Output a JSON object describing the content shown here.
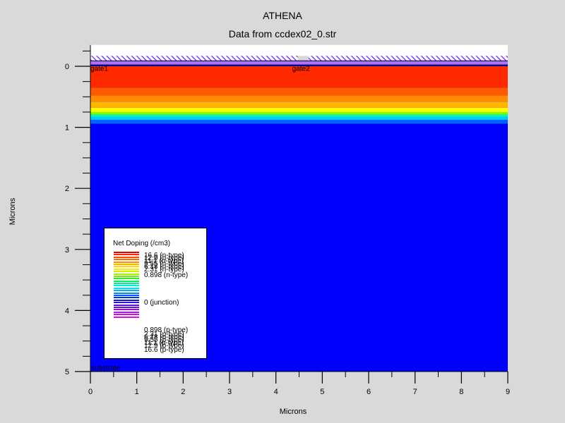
{
  "chart_data": {
    "type": "heatmap",
    "title": "ATHENA",
    "subtitle": "Data from ccdex02_0.str",
    "xlabel": "Microns",
    "ylabel": "Microns",
    "xlim": [
      0,
      9
    ],
    "ylim": [
      5,
      -0.35
    ],
    "x_ticks": [
      "0",
      "1",
      "2",
      "3",
      "4",
      "5",
      "6",
      "7",
      "8",
      "9"
    ],
    "y_ticks": [
      "0",
      "1",
      "2",
      "3",
      "4",
      "5"
    ],
    "background_color": "#0000ff",
    "layers": [
      {
        "y_from": 0.0,
        "y_to": 0.35,
        "level": "16.6 (n-type)",
        "color": "#ff2a00"
      },
      {
        "y_from": 0.35,
        "y_to": 0.48,
        "level": "12.9 (n-type)",
        "color": "#ff5a00"
      },
      {
        "y_from": 0.48,
        "y_to": 0.58,
        "level": "11.1 (n-type)",
        "color": "#ff8c00"
      },
      {
        "y_from": 0.58,
        "y_to": 0.68,
        "level": "9.55 (n-type)",
        "color": "#ffb400"
      },
      {
        "y_from": 0.68,
        "y_to": 0.75,
        "level": "6.18 (n-type)",
        "color": "#ffff00"
      },
      {
        "y_from": 0.75,
        "y_to": 0.79,
        "level": "2.31 (n-type)",
        "color": "#80ff00"
      },
      {
        "y_from": 0.79,
        "y_to": 0.83,
        "level": "0 (junction)",
        "color": "#00ffb0"
      },
      {
        "y_from": 0.83,
        "y_to": 0.88,
        "level": "0.898 (p-type)",
        "color": "#00c8ff"
      },
      {
        "y_from": 0.88,
        "y_to": 0.94,
        "level": "2.31 (p-type)",
        "color": "#0064ff"
      }
    ],
    "oxide_color": "#7b3fff",
    "electrodes": [
      {
        "label": "gate1",
        "x": 0.0
      },
      {
        "label": "gate2",
        "x": 4.35
      }
    ],
    "substrate_label": "substrate",
    "legend": {
      "title": "Net Doping (/cm3)",
      "position": "lower-left",
      "swatch_colors": [
        "#e80000",
        "#ff2400",
        "#ff4800",
        "#ff6c00",
        "#ff9000",
        "#ffb400",
        "#ffd800",
        "#f8f000",
        "#d0f000",
        "#a8f000",
        "#70f000",
        "#30f020",
        "#00f060",
        "#00f0a0",
        "#00f0d0",
        "#00e0f0",
        "#00b4f0",
        "#0088ff",
        "#0058ff",
        "#0030f0",
        "#1010e0",
        "#3010e0",
        "#5010e0",
        "#7010e0",
        "#9010e0",
        "#b010e0",
        "#c810e0",
        "#e010e0"
      ],
      "top_labels": [
        "16.6 (n-type)",
        "12.9 (n-type)",
        "11.1 (n-type)",
        "9.55 (n-type)",
        "6.18 (n-type)",
        "2.31 (n-type)",
        "0.898 (n-type)"
      ],
      "middle_label": "0 (junction)",
      "bottom_labels": [
        "0.898 (p-type)",
        "2.31 (p-type)",
        "6.18 (p-type)",
        "9.55 (p-type)",
        "11.1 (p-type)",
        "12.9 (p-type)",
        "16.6 (p-type)"
      ]
    }
  }
}
